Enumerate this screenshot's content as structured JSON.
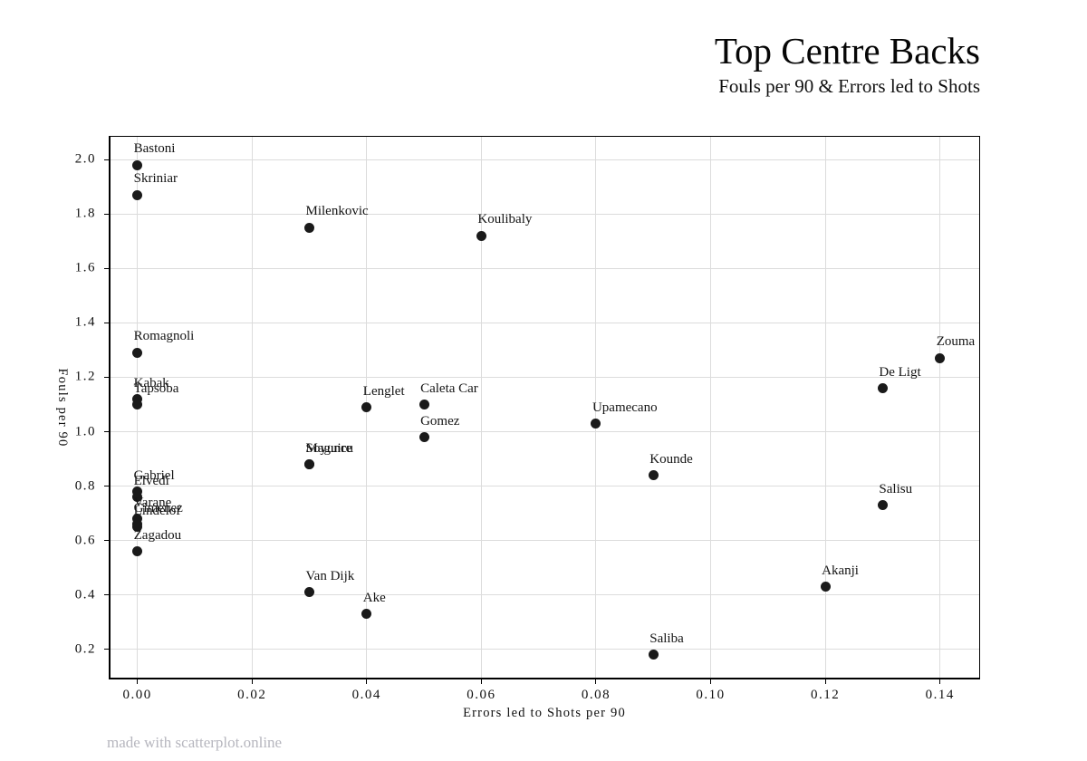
{
  "header": {
    "title": "Top Centre Backs",
    "subtitle": "Fouls per 90 & Errors led to Shots"
  },
  "footer": {
    "credit": "made with scatterplot.online"
  },
  "chart_data": {
    "type": "scatter",
    "title": "Top Centre Backs",
    "subtitle": "Fouls per 90 & Errors led to Shots",
    "xlabel": "Errors led to Shots per 90",
    "ylabel": "Fouls per 90",
    "xlim": [
      -0.005,
      0.147
    ],
    "ylim": [
      0.09,
      2.087
    ],
    "grid": true,
    "legend": false,
    "marker_color": "#1a1a1a",
    "gridline_color": "#dcdcdc",
    "x_ticks": [
      {
        "value": 0.0,
        "label": "0.00"
      },
      {
        "value": 0.02,
        "label": "0.02"
      },
      {
        "value": 0.04,
        "label": "0.04"
      },
      {
        "value": 0.06,
        "label": "0.06"
      },
      {
        "value": 0.08,
        "label": "0.08"
      },
      {
        "value": 0.1,
        "label": "0.10"
      },
      {
        "value": 0.12,
        "label": "0.12"
      },
      {
        "value": 0.14,
        "label": "0.14"
      }
    ],
    "y_ticks": [
      {
        "value": 0.2,
        "label": "0.2"
      },
      {
        "value": 0.4,
        "label": "0.4"
      },
      {
        "value": 0.6,
        "label": "0.6"
      },
      {
        "value": 0.8,
        "label": "0.8"
      },
      {
        "value": 1.0,
        "label": "1.0"
      },
      {
        "value": 1.2,
        "label": "1.2"
      },
      {
        "value": 1.4,
        "label": "1.4"
      },
      {
        "value": 1.6,
        "label": "1.6"
      },
      {
        "value": 1.8,
        "label": "1.8"
      },
      {
        "value": 2.0,
        "label": "2.0"
      }
    ],
    "points": [
      {
        "label": "Bastoni",
        "x": 0.0,
        "y": 1.98
      },
      {
        "label": "Skriniar",
        "x": 0.0,
        "y": 1.87
      },
      {
        "label": "Milenkovic",
        "x": 0.03,
        "y": 1.75
      },
      {
        "label": "Koulibaly",
        "x": 0.06,
        "y": 1.72
      },
      {
        "label": "Romagnoli",
        "x": 0.0,
        "y": 1.29
      },
      {
        "label": "Zouma",
        "x": 0.14,
        "y": 1.27
      },
      {
        "label": "De Ligt",
        "x": 0.13,
        "y": 1.16
      },
      {
        "label": "Kabak",
        "x": 0.0,
        "y": 1.12
      },
      {
        "label": "Tapsoba",
        "x": 0.0,
        "y": 1.1
      },
      {
        "label": "Caleta Car",
        "x": 0.05,
        "y": 1.1
      },
      {
        "label": "Lenglet",
        "x": 0.04,
        "y": 1.09
      },
      {
        "label": "Upamecano",
        "x": 0.08,
        "y": 1.03
      },
      {
        "label": "Gomez",
        "x": 0.05,
        "y": 0.98
      },
      {
        "label": "Maguire",
        "x": 0.03,
        "y": 0.88
      },
      {
        "label": "Soyuncu",
        "x": 0.03,
        "y": 0.88
      },
      {
        "label": "Kounde",
        "x": 0.09,
        "y": 0.84
      },
      {
        "label": "Gabriel",
        "x": 0.0,
        "y": 0.78
      },
      {
        "label": "Elvedi",
        "x": 0.0,
        "y": 0.76
      },
      {
        "label": "Salisu",
        "x": 0.13,
        "y": 0.73
      },
      {
        "label": "Varane",
        "x": 0.0,
        "y": 0.68
      },
      {
        "label": "Gimenez",
        "x": 0.0,
        "y": 0.66
      },
      {
        "label": "Lindelof",
        "x": 0.0,
        "y": 0.65
      },
      {
        "label": "Zagadou",
        "x": 0.0,
        "y": 0.56
      },
      {
        "label": "Akanji",
        "x": 0.12,
        "y": 0.43
      },
      {
        "label": "Van Dijk",
        "x": 0.03,
        "y": 0.41
      },
      {
        "label": "Ake",
        "x": 0.04,
        "y": 0.33
      },
      {
        "label": "Saliba",
        "x": 0.09,
        "y": 0.18
      }
    ]
  }
}
